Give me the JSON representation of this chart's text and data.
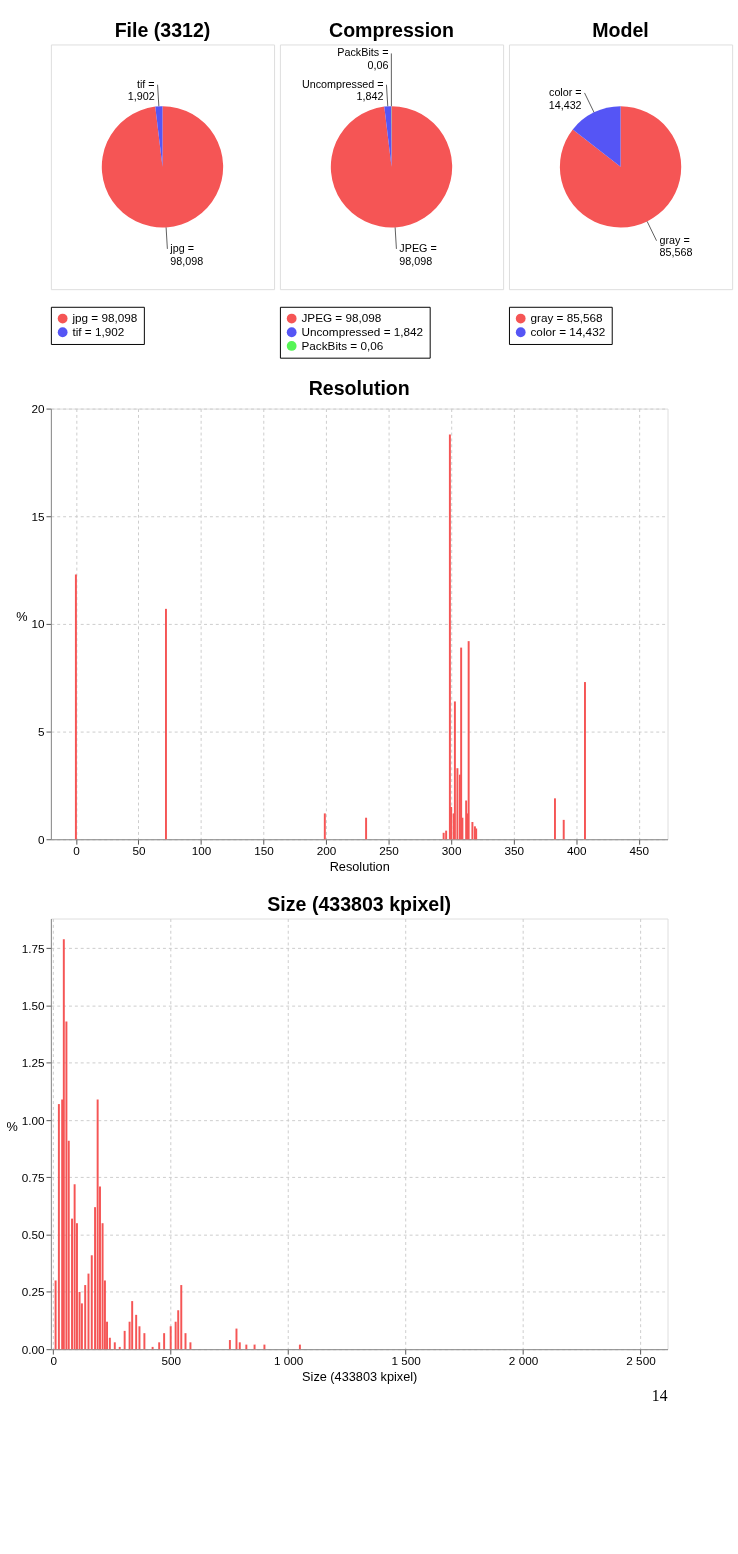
{
  "chart_data": [
    {
      "type": "pie",
      "title": "File (3312)",
      "categories": [
        "jpg = 98,098",
        "tif = 1,902"
      ],
      "values": [
        98.098,
        1.902
      ],
      "colors": [
        "#f55555",
        "#5555f5"
      ],
      "legend": "bottom"
    },
    {
      "type": "pie",
      "title": "Compression",
      "categories": [
        "JPEG = 98,098",
        "Uncompressed = 1,842",
        "PackBits = 0,06"
      ],
      "values": [
        98.098,
        1.842,
        0.06
      ],
      "colors": [
        "#f55555",
        "#5555f5",
        "#55f555"
      ],
      "legend": "bottom"
    },
    {
      "type": "pie",
      "title": "Model",
      "categories": [
        "gray = 85,568",
        "color = 14,432"
      ],
      "values": [
        85.568,
        14.432
      ],
      "colors": [
        "#f55555",
        "#5555f5"
      ],
      "legend": "bottom"
    },
    {
      "type": "bar",
      "title": "Resolution",
      "xlabel": "Resolution",
      "ylabel": "%",
      "x": [
        0,
        72,
        199,
        232,
        294,
        296,
        299,
        300,
        302,
        303,
        305,
        307,
        308,
        309,
        312,
        313,
        314,
        317,
        319,
        320,
        383,
        390,
        407
      ],
      "series": [
        {
          "color": "#f55555",
          "values": [
            12.3,
            10.7,
            1.2,
            1.0,
            0.3,
            0.4,
            18.8,
            1.5,
            1.2,
            6.4,
            3.3,
            3.0,
            8.9,
            1.0,
            1.8,
            1.2,
            9.2,
            0.8,
            0.6,
            0.5,
            1.9,
            0.9,
            7.3
          ]
        }
      ],
      "xlim": [
        -20,
        473
      ],
      "xticks": [
        0,
        50,
        100,
        150,
        200,
        250,
        300,
        350,
        400,
        450
      ],
      "ylim": [
        0,
        20
      ],
      "yticks": [
        0,
        5,
        10,
        15,
        20
      ],
      "grid": true
    },
    {
      "type": "bar",
      "title": "Size (433803 kpixel)",
      "xlabel": "Size (433803 kpixel)",
      "ylabel": "%",
      "x": [
        10,
        24,
        38,
        45,
        56,
        66,
        80,
        91,
        101,
        112,
        122,
        136,
        150,
        164,
        178,
        189,
        199,
        210,
        220,
        229,
        241,
        262,
        283,
        304,
        325,
        336,
        353,
        367,
        388,
        423,
        451,
        472,
        500,
        521,
        532,
        545,
        563,
        584,
        752,
        780,
        794,
        822,
        857,
        899,
        1050
      ],
      "series": [
        {
          "color": "#f55555",
          "values": [
            0.3,
            1.07,
            1.09,
            1.79,
            1.43,
            0.91,
            0.57,
            0.72,
            0.55,
            0.25,
            0.2,
            0.28,
            0.33,
            0.41,
            0.62,
            1.09,
            0.71,
            0.55,
            0.3,
            0.12,
            0.05,
            0.03,
            0.01,
            0.08,
            0.12,
            0.21,
            0.15,
            0.1,
            0.07,
            0.01,
            0.03,
            0.07,
            0.1,
            0.12,
            0.17,
            0.28,
            0.07,
            0.03,
            0.04,
            0.09,
            0.03,
            0.02,
            0.02,
            0.02,
            0.02
          ]
        }
      ],
      "xlim": [
        -10,
        2615
      ],
      "xticks": [
        0,
        500,
        {
          "value": 1000,
          "label": "1 000"
        },
        {
          "value": 1500,
          "label": "1 500"
        },
        {
          "value": 2000,
          "label": "2 000"
        },
        {
          "value": 2500,
          "label": "2 500"
        }
      ],
      "ylim": [
        0,
        1.88
      ],
      "yticks": [
        {
          "value": 0,
          "label": "0.00"
        },
        {
          "value": 0.25,
          "label": "0.25"
        },
        {
          "value": 0.5,
          "label": "0.50"
        },
        {
          "value": 0.75,
          "label": "0.75"
        },
        {
          "value": 1,
          "label": "1.00"
        },
        {
          "value": 1.25,
          "label": "1.25"
        },
        {
          "value": 1.5,
          "label": "1.50"
        },
        {
          "value": 1.75,
          "label": "1.75"
        }
      ],
      "grid": true,
      "annotations": [
        "14"
      ]
    }
  ]
}
